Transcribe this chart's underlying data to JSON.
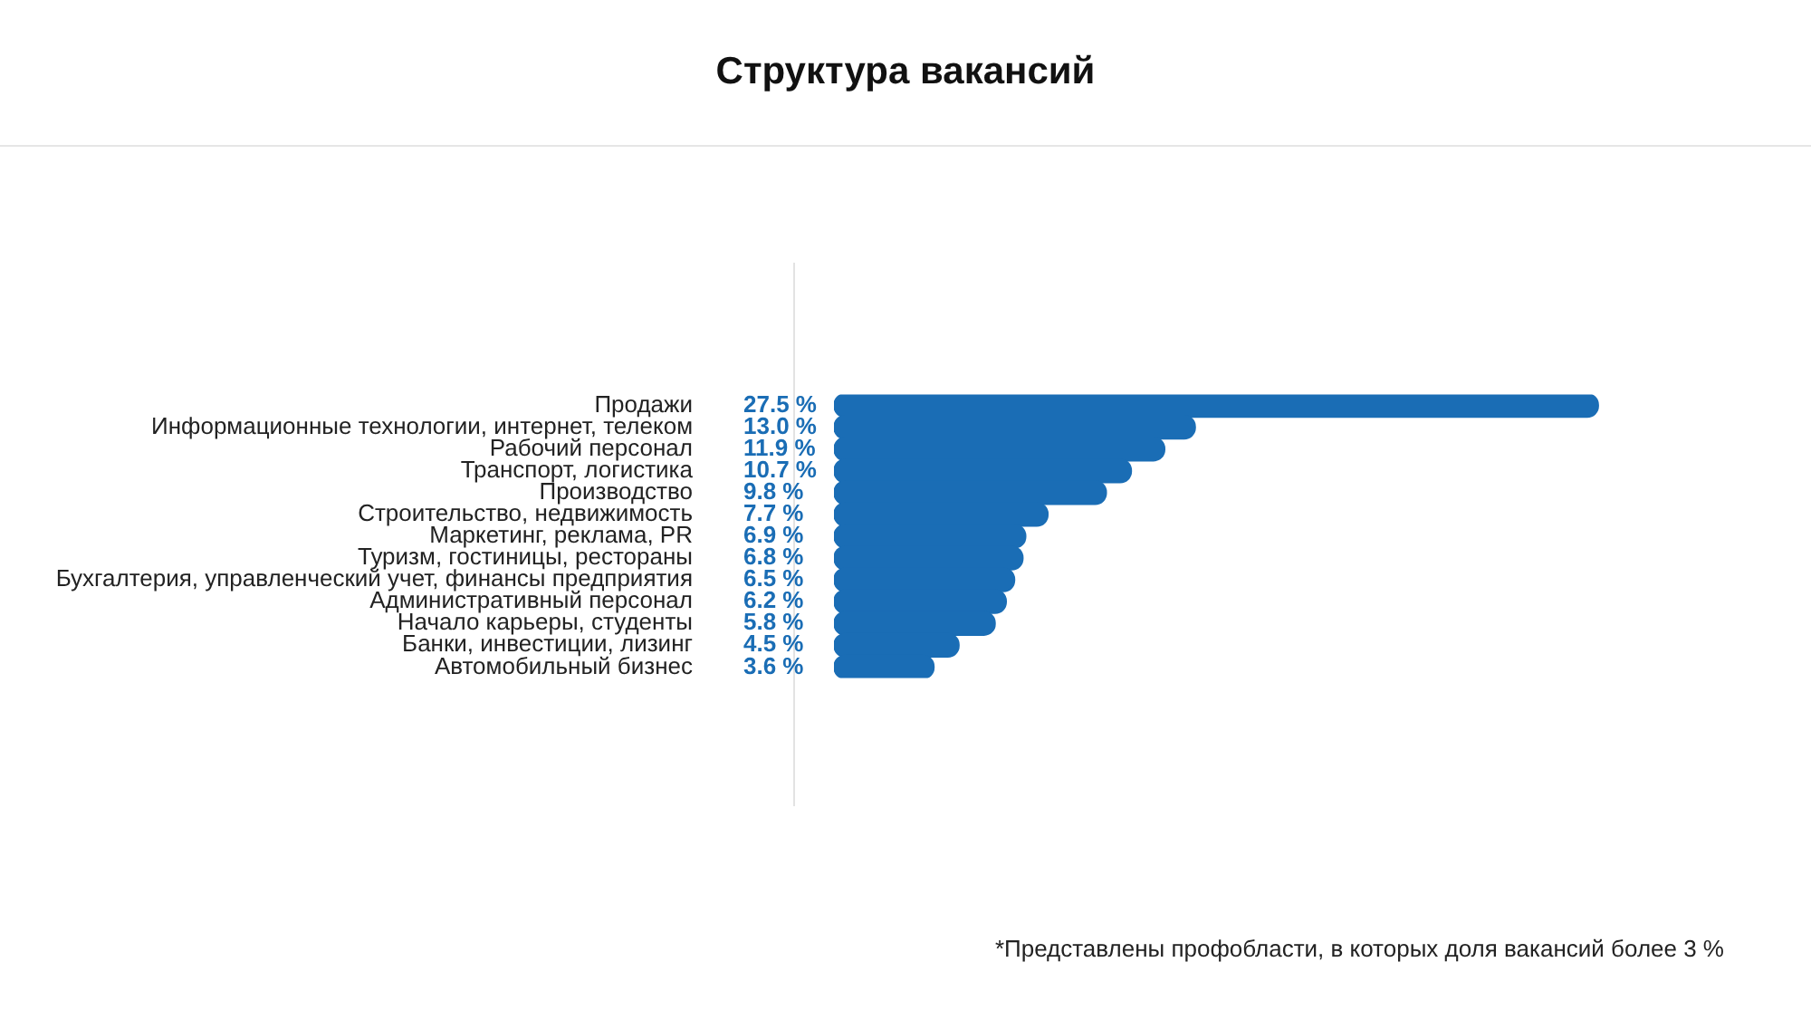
{
  "chart_data": {
    "type": "bar",
    "orientation": "horizontal",
    "title": "Структура вакансий",
    "categories": [
      "Продажи",
      "Информационные технологии, интернет, телеком",
      "Рабочий персонал",
      "Транспорт, логистика",
      "Производство",
      "Строительство, недвижимость",
      "Маркетинг, реклама, PR",
      "Туризм, гостиницы, рестораны",
      "Бухгалтерия, управленческий учет, финансы предприятия",
      "Административный персонал",
      "Начало карьеры, студенты",
      "Банки, инвестиции, лизинг",
      "Автомобильный бизнес"
    ],
    "values": [
      27.5,
      13.0,
      11.9,
      10.7,
      9.8,
      7.7,
      6.9,
      6.8,
      6.5,
      6.2,
      5.8,
      4.5,
      3.6
    ],
    "value_labels": [
      "27.5 %",
      "13.0 %",
      "11.9 %",
      "10.7 %",
      "9.8 %",
      "7.7 %",
      "6.9 %",
      "6.8 %",
      "6.5 %",
      "6.2 %",
      "5.8 %",
      "4.5 %",
      "3.6 %"
    ],
    "color": "#1a6db5",
    "annotations": [
      "*Представлены профобласти, в которых доля вакансий более 3 %"
    ]
  }
}
